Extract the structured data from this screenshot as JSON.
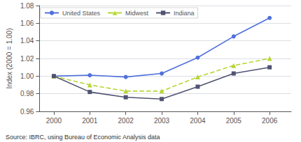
{
  "chart_data": {
    "type": "line",
    "x": [
      2000,
      2001,
      2002,
      2003,
      2004,
      2005,
      2006
    ],
    "xlim": [
      1999.6,
      2006.6
    ],
    "xticks": [
      2000,
      2001,
      2002,
      2003,
      2004,
      2005,
      2006
    ],
    "ylim": [
      0.96,
      1.08
    ],
    "yticks": [
      0.96,
      0.98,
      {
        "value": 1.0,
        "label": "1.00"
      },
      1.02,
      1.04,
      1.06,
      1.08
    ],
    "ylabel": "Index (2000 = 1.00)",
    "annotations": [
      "Source: IBRC, using Bureau of Economic Analysis data"
    ],
    "grid": true,
    "legend": "upper left",
    "series": [
      {
        "name": "United States",
        "marker": "circle",
        "line_style": "solid",
        "values": [
          1.0,
          1.001,
          0.999,
          1.003,
          1.021,
          1.045,
          1.066
        ]
      },
      {
        "name": "Midwest",
        "marker": "triangle",
        "line_style": "dashed",
        "values": [
          1.0,
          0.99,
          0.983,
          0.983,
          0.999,
          1.012,
          1.02
        ]
      },
      {
        "name": "Indiana",
        "marker": "square",
        "line_style": "solid",
        "values": [
          1.0,
          0.982,
          0.976,
          0.974,
          0.988,
          1.003,
          1.01
        ]
      }
    ]
  }
}
